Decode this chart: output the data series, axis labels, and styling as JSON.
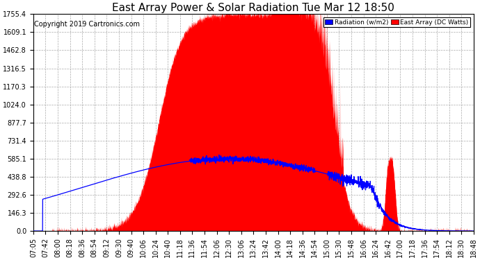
{
  "title": "East Array Power & Solar Radiation Tue Mar 12 18:50",
  "copyright": "Copyright 2019 Cartronics.com",
  "y_max": 1755.4,
  "y_ticks": [
    0.0,
    146.3,
    292.6,
    438.8,
    585.1,
    731.4,
    877.7,
    1024.0,
    1170.3,
    1316.5,
    1462.8,
    1609.1,
    1755.4
  ],
  "legend_radiation_label": "Radiation (w/m2)",
  "legend_east_array_label": "East Array (DC Watts)",
  "legend_radiation_color": "#0000ff",
  "legend_east_array_color": "#ff0000",
  "fill_color": "#ff0000",
  "line_color": "#0000ff",
  "background_color": "#ffffff",
  "grid_color": "#aaaaaa",
  "title_fontsize": 11,
  "copyright_fontsize": 7,
  "tick_fontsize": 7,
  "time_labels": [
    "07:05",
    "07:42",
    "08:00",
    "08:18",
    "08:36",
    "08:54",
    "09:12",
    "09:30",
    "09:40",
    "10:06",
    "10:24",
    "10:40",
    "11:18",
    "11:36",
    "11:54",
    "12:06",
    "12:30",
    "13:06",
    "13:24",
    "13:42",
    "14:00",
    "14:18",
    "14:36",
    "14:54",
    "15:00",
    "15:30",
    "15:48",
    "16:06",
    "16:24",
    "16:42",
    "17:00",
    "17:18",
    "17:36",
    "17:54",
    "18:12",
    "18:30",
    "18:48"
  ]
}
